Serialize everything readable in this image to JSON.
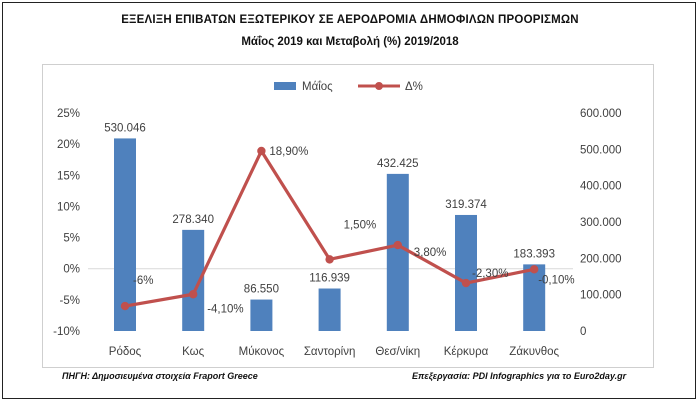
{
  "header": {
    "title": "ΕΞΕΛΙΞΗ ΕΠΙΒΑΤΩΝ ΕΞΩΤΕΡΙΚΟΥ ΣΕ ΑΕΡΟΔΡΟΜΙΑ ΔΗΜΟΦΙΛΩΝ ΠΡΟΟΡΙΣΜΩΝ",
    "subtitle": "Μάΐος 2019 και Μεταβολή (%) 2019/2018"
  },
  "footer": {
    "source": "ΠΗΓΗ: Δημοσιευμένα στοιχεία Fraport Greece",
    "credit": "Επεξεργασία: PDI Infographics για το Euro2day.gr"
  },
  "colors": {
    "bar": "#4f81bd",
    "line": "#c0504d",
    "text": "#404040",
    "grid": "#d9d9d9"
  },
  "chart_data": {
    "type": "bar",
    "categories": [
      "Ρόδος",
      "Κως",
      "Μύκονος",
      "Σαντορίνη",
      "Θεσ/νίκη",
      "Κέρκυρα",
      "Ζάκυνθος"
    ],
    "series": [
      {
        "name": "Μάΐος",
        "type": "bar",
        "axis": "right",
        "values": [
          530046,
          278340,
          86550,
          116939,
          432425,
          319374,
          183393
        ],
        "labels": [
          "530.046",
          "278.340",
          "86.550",
          "116.939",
          "432.425",
          "319.374",
          "183.393"
        ]
      },
      {
        "name": "Δ%",
        "type": "line",
        "axis": "left",
        "values": [
          -6,
          -4.1,
          18.9,
          1.5,
          3.8,
          -2.3,
          -0.1
        ],
        "labels": [
          "-6%",
          "-4,10%",
          "18,90%",
          "1,50%",
          "3,80%",
          "-2,30%",
          "-0,10%"
        ]
      }
    ],
    "y_left": {
      "ylim": [
        -10,
        25
      ],
      "ticks": [
        -10,
        -5,
        0,
        5,
        10,
        15,
        20,
        25
      ],
      "tick_labels": [
        "-10%",
        "-5%",
        "0%",
        "5%",
        "10%",
        "15%",
        "20%",
        "25%"
      ]
    },
    "y_right": {
      "ylim": [
        0,
        600000
      ],
      "ticks": [
        0,
        100000,
        200000,
        300000,
        400000,
        500000,
        600000
      ],
      "tick_labels": [
        "0",
        "100.000",
        "200.000",
        "300.000",
        "400.000",
        "500.000",
        "600.000"
      ]
    },
    "legend": {
      "position": "top",
      "entries": [
        "Μάΐος",
        "Δ%"
      ]
    },
    "grid": false
  }
}
